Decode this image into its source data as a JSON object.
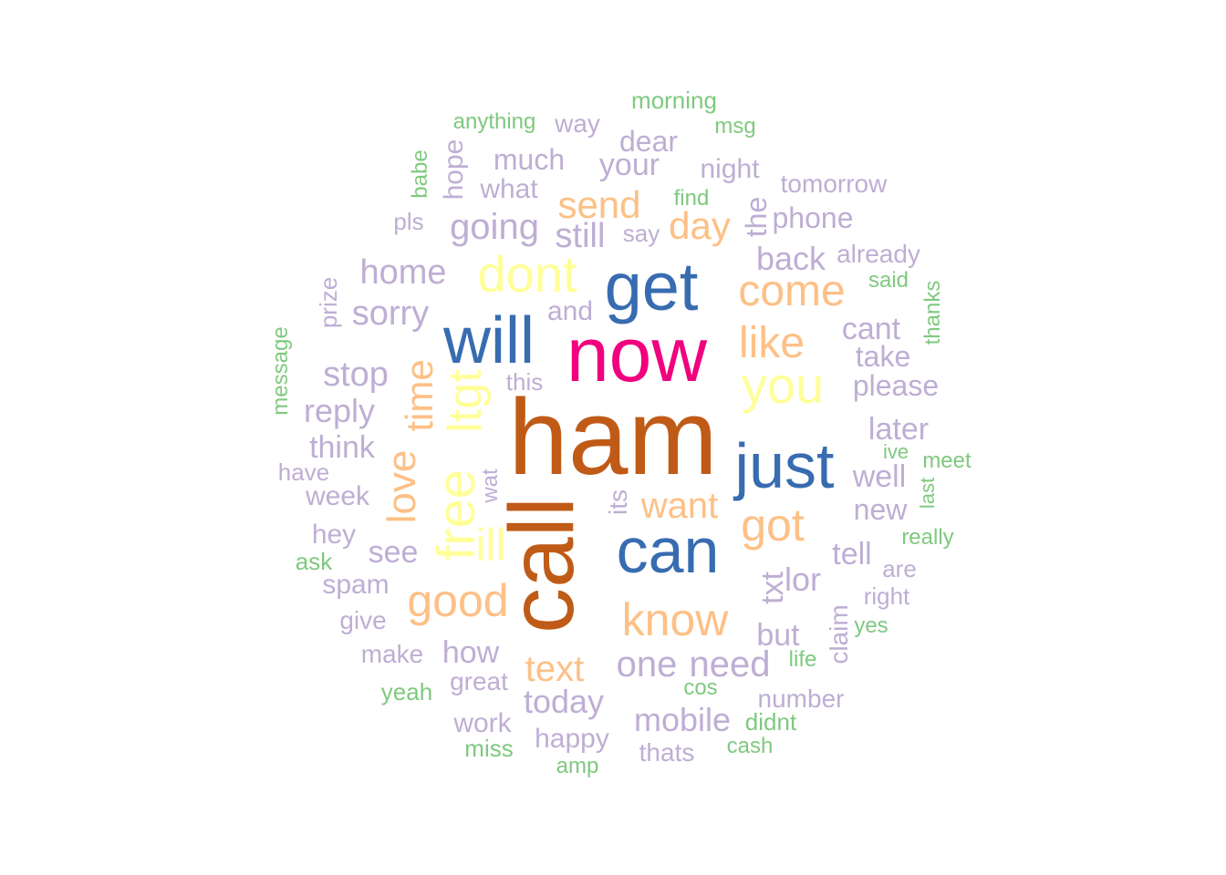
{
  "palette": {
    "brown": "#BF5B17",
    "magenta": "#F0027F",
    "blue": "#386CB0",
    "yellow": "#FFFF99",
    "orange": "#FDC086",
    "purple": "#BEAED4",
    "green": "#7FC97F"
  },
  "words": [
    {
      "text": "ham",
      "color": "brown"
    },
    {
      "text": "call",
      "color": "brown"
    },
    {
      "text": "now",
      "color": "magenta"
    },
    {
      "text": "get",
      "color": "blue"
    },
    {
      "text": "will",
      "color": "blue"
    },
    {
      "text": "just",
      "color": "blue"
    },
    {
      "text": "can",
      "color": "blue"
    },
    {
      "text": "dont",
      "color": "yellow"
    },
    {
      "text": "you",
      "color": "yellow"
    },
    {
      "text": "free",
      "color": "yellow"
    },
    {
      "text": "ltgt",
      "color": "yellow"
    },
    {
      "text": "ill",
      "color": "yellow"
    },
    {
      "text": "come",
      "color": "orange"
    },
    {
      "text": "like",
      "color": "orange"
    },
    {
      "text": "know",
      "color": "orange"
    },
    {
      "text": "good",
      "color": "orange"
    },
    {
      "text": "got",
      "color": "orange"
    },
    {
      "text": "send",
      "color": "orange"
    },
    {
      "text": "day",
      "color": "orange"
    },
    {
      "text": "time",
      "color": "orange"
    },
    {
      "text": "love",
      "color": "orange"
    },
    {
      "text": "want",
      "color": "orange"
    },
    {
      "text": "text",
      "color": "orange"
    },
    {
      "text": "going",
      "color": "purple"
    },
    {
      "text": "home",
      "color": "purple"
    },
    {
      "text": "sorry",
      "color": "purple"
    },
    {
      "text": "stop",
      "color": "purple"
    },
    {
      "text": "reply",
      "color": "purple"
    },
    {
      "text": "think",
      "color": "purple"
    },
    {
      "text": "still",
      "color": "purple"
    },
    {
      "text": "back",
      "color": "purple"
    },
    {
      "text": "phone",
      "color": "purple"
    },
    {
      "text": "cant",
      "color": "purple"
    },
    {
      "text": "take",
      "color": "purple"
    },
    {
      "text": "please",
      "color": "purple"
    },
    {
      "text": "later",
      "color": "purple"
    },
    {
      "text": "well",
      "color": "purple"
    },
    {
      "text": "new",
      "color": "purple"
    },
    {
      "text": "tell",
      "color": "purple"
    },
    {
      "text": "lor",
      "color": "purple"
    },
    {
      "text": "txt",
      "color": "purple"
    },
    {
      "text": "but",
      "color": "purple"
    },
    {
      "text": "one",
      "color": "purple"
    },
    {
      "text": "need",
      "color": "purple"
    },
    {
      "text": "today",
      "color": "purple"
    },
    {
      "text": "mobile",
      "color": "purple"
    },
    {
      "text": "how",
      "color": "purple"
    },
    {
      "text": "see",
      "color": "purple"
    },
    {
      "text": "much",
      "color": "purple"
    },
    {
      "text": "what",
      "color": "purple"
    },
    {
      "text": "your",
      "color": "purple"
    },
    {
      "text": "dear",
      "color": "purple"
    },
    {
      "text": "night",
      "color": "purple"
    },
    {
      "text": "way",
      "color": "purple"
    },
    {
      "text": "hope",
      "color": "purple"
    },
    {
      "text": "the",
      "color": "purple"
    },
    {
      "text": "and",
      "color": "purple"
    },
    {
      "text": "this",
      "color": "purple"
    },
    {
      "text": "pls",
      "color": "purple"
    },
    {
      "text": "say",
      "color": "purple"
    },
    {
      "text": "tomorrow",
      "color": "purple"
    },
    {
      "text": "already",
      "color": "purple"
    },
    {
      "text": "prize",
      "color": "purple"
    },
    {
      "text": "have",
      "color": "purple"
    },
    {
      "text": "week",
      "color": "purple"
    },
    {
      "text": "hey",
      "color": "purple"
    },
    {
      "text": "spam",
      "color": "purple"
    },
    {
      "text": "give",
      "color": "purple"
    },
    {
      "text": "make",
      "color": "purple"
    },
    {
      "text": "great",
      "color": "purple"
    },
    {
      "text": "work",
      "color": "purple"
    },
    {
      "text": "happy",
      "color": "purple"
    },
    {
      "text": "thats",
      "color": "purple"
    },
    {
      "text": "number",
      "color": "purple"
    },
    {
      "text": "claim",
      "color": "purple"
    },
    {
      "text": "are",
      "color": "purple"
    },
    {
      "text": "right",
      "color": "purple"
    },
    {
      "text": "wat",
      "color": "purple"
    },
    {
      "text": "its",
      "color": "purple"
    },
    {
      "text": "morning",
      "color": "green"
    },
    {
      "text": "anything",
      "color": "green"
    },
    {
      "text": "msg",
      "color": "green"
    },
    {
      "text": "find",
      "color": "green"
    },
    {
      "text": "babe",
      "color": "green"
    },
    {
      "text": "said",
      "color": "green"
    },
    {
      "text": "thanks",
      "color": "green"
    },
    {
      "text": "message",
      "color": "green"
    },
    {
      "text": "ive",
      "color": "green"
    },
    {
      "text": "meet",
      "color": "green"
    },
    {
      "text": "last",
      "color": "green"
    },
    {
      "text": "really",
      "color": "green"
    },
    {
      "text": "ask",
      "color": "green"
    },
    {
      "text": "yes",
      "color": "green"
    },
    {
      "text": "life",
      "color": "green"
    },
    {
      "text": "cos",
      "color": "green"
    },
    {
      "text": "yeah",
      "color": "green"
    },
    {
      "text": "didnt",
      "color": "green"
    },
    {
      "text": "cash",
      "color": "green"
    },
    {
      "text": "miss",
      "color": "green"
    },
    {
      "text": "amp",
      "color": "green"
    }
  ]
}
